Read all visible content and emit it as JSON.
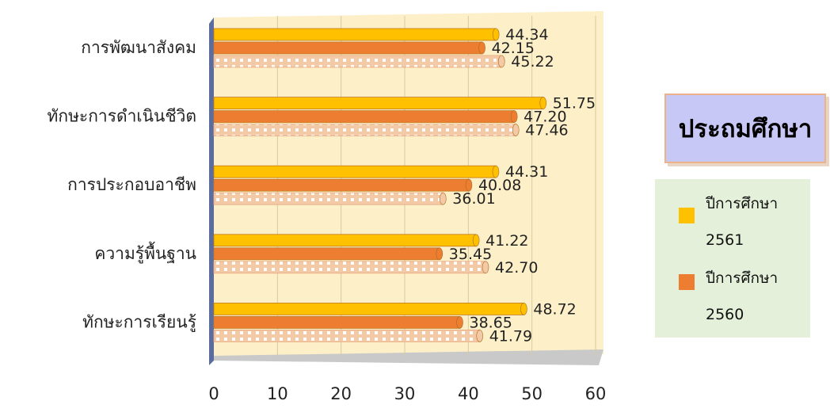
{
  "chart_data": {
    "type": "bar",
    "orientation": "horizontal",
    "title": "ประถมศึกษา",
    "categories": [
      "การพัฒนาสังคม",
      "ทักษะการดำเนินชีวิต",
      "การประกอบอาชีพ",
      "ความรู้พื้นฐาน",
      "ทักษะการเรียนรู้"
    ],
    "series": [
      {
        "name": "ปีการศึกษา 2561",
        "values": [
          44.34,
          51.75,
          44.31,
          41.22,
          48.72
        ],
        "labels": [
          "44.34",
          "51.75",
          "44.31",
          "41.22",
          "48.72"
        ],
        "color": "#FFC000"
      },
      {
        "name": "ปีการศึกษา 2560",
        "values": [
          42.15,
          47.2,
          40.08,
          35.45,
          38.65
        ],
        "labels": [
          "42.15",
          "47.20",
          "40.08",
          "35.45",
          "38.65"
        ],
        "color": "#ED7D31"
      },
      {
        "values": [
          45.22,
          47.46,
          36.01,
          42.7,
          41.79
        ],
        "labels": [
          "45.22",
          "47.46",
          "36.01",
          "42.70",
          "41.79"
        ],
        "color": "#F4C9A6"
      }
    ],
    "xlim": [
      0,
      60
    ],
    "xticks": [
      "0",
      "10",
      "20",
      "30",
      "40",
      "50",
      "60"
    ],
    "grid": true,
    "legend_position": "right"
  },
  "legend": {
    "items": [
      {
        "line1": "ปีการศึกษา",
        "line2": "2561",
        "color": "#FFC000"
      },
      {
        "line1": "ปีการศึกษา",
        "line2": "2560",
        "color": "#ED7D31"
      }
    ]
  }
}
